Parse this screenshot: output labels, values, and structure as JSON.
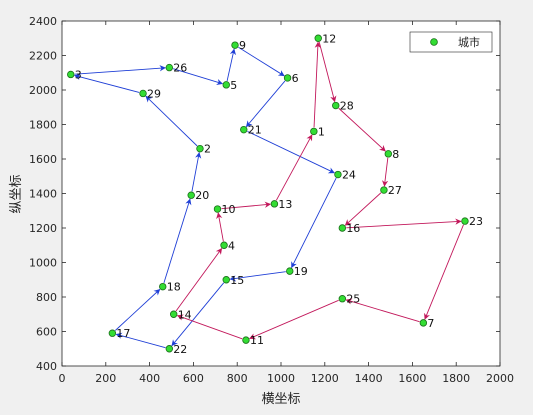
{
  "chart_data": {
    "type": "scatter",
    "title": "",
    "xlabel": "横坐标",
    "ylabel": "纵坐标",
    "xlim": [
      0,
      2000
    ],
    "ylim": [
      400,
      2400
    ],
    "xticks": [
      0,
      200,
      400,
      600,
      800,
      1000,
      1200,
      1400,
      1600,
      1800,
      2000
    ],
    "yticks": [
      400,
      600,
      800,
      1000,
      1200,
      1400,
      1600,
      1800,
      2000,
      2200,
      2400
    ],
    "legend": {
      "label": "城市",
      "position": "top-right"
    },
    "grid": false,
    "colors": {
      "point_fill": "#33dd33",
      "point_edge": "#1a6e1a",
      "route_blue": "#1f3fd6",
      "route_magenta": "#c2185b",
      "background": "#f0f0f0",
      "axes_bg": "#ffffff"
    },
    "cities": [
      {
        "id": "1",
        "x": 1150,
        "y": 1760
      },
      {
        "id": "2",
        "x": 630,
        "y": 1660
      },
      {
        "id": "4",
        "x": 740,
        "y": 1100
      },
      {
        "id": "5",
        "x": 750,
        "y": 2030
      },
      {
        "id": "6",
        "x": 1030,
        "y": 2070
      },
      {
        "id": "7",
        "x": 1650,
        "y": 650
      },
      {
        "id": "8",
        "x": 1490,
        "y": 1630
      },
      {
        "id": "9",
        "x": 790,
        "y": 2260
      },
      {
        "id": "11",
        "x": 840,
        "y": 550
      },
      {
        "id": "12",
        "x": 1170,
        "y": 2300
      },
      {
        "id": "13",
        "x": 970,
        "y": 1340
      },
      {
        "id": "14",
        "x": 510,
        "y": 700
      },
      {
        "id": "15",
        "x": 750,
        "y": 900
      },
      {
        "id": "16",
        "x": 1280,
        "y": 1200
      },
      {
        "id": "17",
        "x": 230,
        "y": 590
      },
      {
        "id": "18",
        "x": 460,
        "y": 860
      },
      {
        "id": "19",
        "x": 1040,
        "y": 950
      },
      {
        "id": "20",
        "x": 590,
        "y": 1390
      },
      {
        "id": "21",
        "x": 830,
        "y": 1770
      },
      {
        "id": "22",
        "x": 490,
        "y": 500
      },
      {
        "id": "23",
        "x": 1840,
        "y": 1240
      },
      {
        "id": "24",
        "x": 1260,
        "y": 1510
      },
      {
        "id": "25",
        "x": 1280,
        "y": 790
      },
      {
        "id": "26",
        "x": 490,
        "y": 2130
      },
      {
        "id": "27",
        "x": 1470,
        "y": 1420
      },
      {
        "id": "28",
        "x": 1250,
        "y": 1910
      },
      {
        "id": "29",
        "x": 370,
        "y": 1980
      },
      {
        "id": "3",
        "x": 40,
        "y": 2090
      },
      {
        "id": "10",
        "x": 710,
        "y": 1310
      }
    ],
    "route": [
      {
        "from": "2",
        "to": "29",
        "color": "route_blue"
      },
      {
        "from": "29",
        "to": "3",
        "color": "route_blue"
      },
      {
        "from": "3",
        "to": "26",
        "color": "route_blue"
      },
      {
        "from": "26",
        "to": "5",
        "color": "route_blue"
      },
      {
        "from": "5",
        "to": "9",
        "color": "route_blue"
      },
      {
        "from": "9",
        "to": "6",
        "color": "route_blue"
      },
      {
        "from": "6",
        "to": "21",
        "color": "route_blue"
      },
      {
        "from": "21",
        "to": "24",
        "color": "route_blue"
      },
      {
        "from": "24",
        "to": "19",
        "color": "route_blue"
      },
      {
        "from": "19",
        "to": "15",
        "color": "route_blue"
      },
      {
        "from": "15",
        "to": "22",
        "color": "route_blue"
      },
      {
        "from": "22",
        "to": "17",
        "color": "route_blue"
      },
      {
        "from": "17",
        "to": "18",
        "color": "route_blue"
      },
      {
        "from": "18",
        "to": "20",
        "color": "route_blue"
      },
      {
        "from": "20",
        "to": "2",
        "color": "route_blue"
      },
      {
        "from": "14",
        "to": "4",
        "color": "route_magenta"
      },
      {
        "from": "4",
        "to": "10",
        "color": "route_magenta"
      },
      {
        "from": "10",
        "to": "13",
        "color": "route_magenta"
      },
      {
        "from": "13",
        "to": "1",
        "color": "route_magenta"
      },
      {
        "from": "1",
        "to": "12",
        "color": "route_magenta"
      },
      {
        "from": "12",
        "to": "28",
        "color": "route_magenta"
      },
      {
        "from": "28",
        "to": "8",
        "color": "route_magenta"
      },
      {
        "from": "8",
        "to": "27",
        "color": "route_magenta"
      },
      {
        "from": "27",
        "to": "16",
        "color": "route_magenta"
      },
      {
        "from": "16",
        "to": "23",
        "color": "route_magenta"
      },
      {
        "from": "23",
        "to": "7",
        "color": "route_magenta"
      },
      {
        "from": "7",
        "to": "25",
        "color": "route_magenta"
      },
      {
        "from": "25",
        "to": "11",
        "color": "route_magenta"
      },
      {
        "from": "11",
        "to": "14",
        "color": "route_magenta"
      }
    ]
  }
}
